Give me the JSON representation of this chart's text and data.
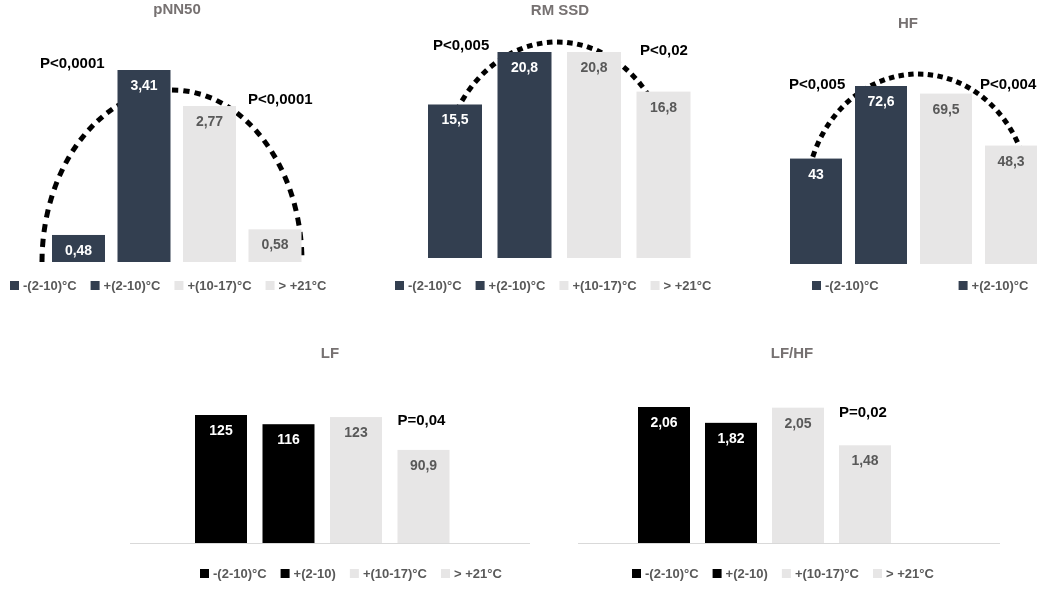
{
  "chart_data": [
    {
      "type": "bar",
      "title": "pNN50",
      "categories": [
        null
      ],
      "legend": "bottom",
      "annotations": [
        "P<0,0001",
        "P<0,0001"
      ],
      "series": [
        {
          "name": "-(2-10)°C",
          "color": "#333f50",
          "values": [
            0.48
          ],
          "value_labels": [
            "0,48"
          ]
        },
        {
          "name": "+(2-10)°C",
          "color": "#333f50",
          "values": [
            3.41
          ],
          "value_labels": [
            "3,41"
          ]
        },
        {
          "name": "+(10-17)°C",
          "color": "#e7e6e6",
          "values": [
            2.77
          ],
          "value_labels": [
            "2,77"
          ]
        },
        {
          "name": "> +21°C",
          "color": "#e7e6e6",
          "values": [
            0.58
          ],
          "value_labels": [
            "0,58"
          ]
        }
      ]
    },
    {
      "type": "bar",
      "title": "RM SSD",
      "categories": [
        null
      ],
      "legend": "bottom",
      "annotations": [
        "P<0,005",
        "P<0,02"
      ],
      "series": [
        {
          "name": "-(2-10)°C",
          "color": "#333f50",
          "values": [
            15.5
          ],
          "value_labels": [
            "15,5"
          ]
        },
        {
          "name": "+(2-10)°C",
          "color": "#333f50",
          "values": [
            20.8
          ],
          "value_labels": [
            "20,8"
          ]
        },
        {
          "name": "+(10-17)°C",
          "color": "#e7e6e6",
          "values": [
            20.8
          ],
          "value_labels": [
            "20,8"
          ]
        },
        {
          "name": "> +21°C",
          "color": "#e7e6e6",
          "values": [
            16.8
          ],
          "value_labels": [
            "16,8"
          ]
        }
      ]
    },
    {
      "type": "bar",
      "title": "HF",
      "categories": [
        null
      ],
      "legend": "bottom",
      "annotations": [
        "P<0,005",
        "P<0,004"
      ],
      "series": [
        {
          "name": "-(2-10)°C",
          "color": "#333f50",
          "values": [
            43
          ],
          "value_labels": [
            "43"
          ]
        },
        {
          "name": "+(2-10)°C",
          "color": "#333f50",
          "values": [
            72.6
          ],
          "value_labels": [
            "72,6"
          ]
        },
        {
          "color": "#e7e6e6",
          "values": [
            69.5
          ],
          "value_labels": [
            "69,5"
          ]
        },
        {
          "color": "#e7e6e6",
          "values": [
            48.3
          ],
          "value_labels": [
            "48,3"
          ]
        }
      ]
    },
    {
      "type": "bar",
      "title": "LF",
      "categories": [
        null
      ],
      "legend": "bottom",
      "annotations": [
        "P=0,04"
      ],
      "series": [
        {
          "name": "-(2-10)°C",
          "color": "#000000",
          "values": [
            125
          ],
          "value_labels": [
            "125"
          ]
        },
        {
          "name": "+(2-10)",
          "color": "#000000",
          "values": [
            116
          ],
          "value_labels": [
            "116"
          ]
        },
        {
          "name": "+(10-17)°C",
          "color": "#e7e6e6",
          "values": [
            123
          ],
          "value_labels": [
            "123"
          ]
        },
        {
          "name": "> +21°C",
          "color": "#e7e6e6",
          "values": [
            90.9
          ],
          "value_labels": [
            "90,9"
          ]
        }
      ]
    },
    {
      "type": "bar",
      "title": "LF/HF",
      "categories": [
        null
      ],
      "legend": "bottom",
      "annotations": [
        "P=0,02"
      ],
      "series": [
        {
          "name": "-(2-10)°C",
          "color": "#000000",
          "values": [
            2.06
          ],
          "value_labels": [
            "2,06"
          ]
        },
        {
          "name": "+(2-10)",
          "color": "#000000",
          "values": [
            1.82
          ],
          "value_labels": [
            "1,82"
          ]
        },
        {
          "name": "+(10-17)°C",
          "color": "#e7e6e6",
          "values": [
            2.05
          ],
          "value_labels": [
            "2,05"
          ]
        },
        {
          "name": "> +21°C",
          "color": "#e7e6e6",
          "values": [
            1.48
          ],
          "value_labels": [
            "1,48"
          ]
        }
      ]
    }
  ]
}
